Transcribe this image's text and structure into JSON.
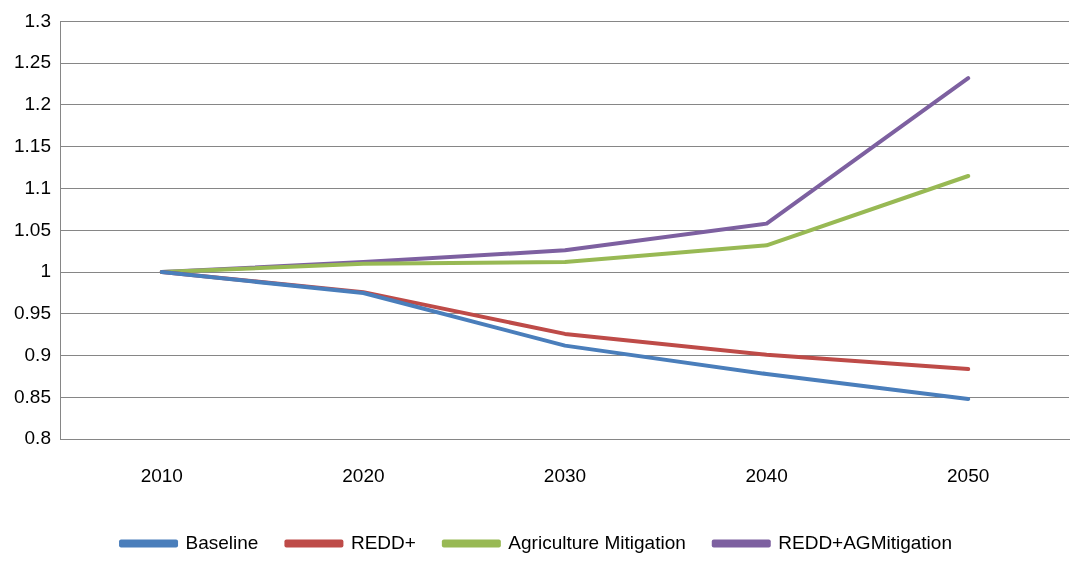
{
  "chart_data": {
    "type": "line",
    "categories": [
      "2010",
      "2020",
      "2030",
      "2040",
      "2050"
    ],
    "series": [
      {
        "name": "Baseline",
        "color": "#4a7ebb",
        "values": [
          1,
          0.975,
          0.912,
          0.878,
          0.848
        ]
      },
      {
        "name": "REDD+",
        "color": "#be4b48",
        "values": [
          1,
          0.976,
          0.926,
          0.901,
          0.884
        ]
      },
      {
        "name": "Agriculture Mitigation",
        "color": "#98b954",
        "values": [
          1,
          1.01,
          1.012,
          1.032,
          1.115
        ]
      },
      {
        "name": "REDD+AGMitigation",
        "color": "#7d60a0",
        "values": [
          1,
          1.012,
          1.026,
          1.058,
          1.232
        ]
      }
    ],
    "ylim": [
      0.8,
      1.3
    ],
    "yticks": [
      0.8,
      0.85,
      0.9,
      0.95,
      1,
      1.05,
      1.1,
      1.15,
      1.2,
      1.25,
      1.3
    ],
    "grid": "y",
    "legend": "bottom",
    "marker": "none",
    "line_style": "solid"
  }
}
